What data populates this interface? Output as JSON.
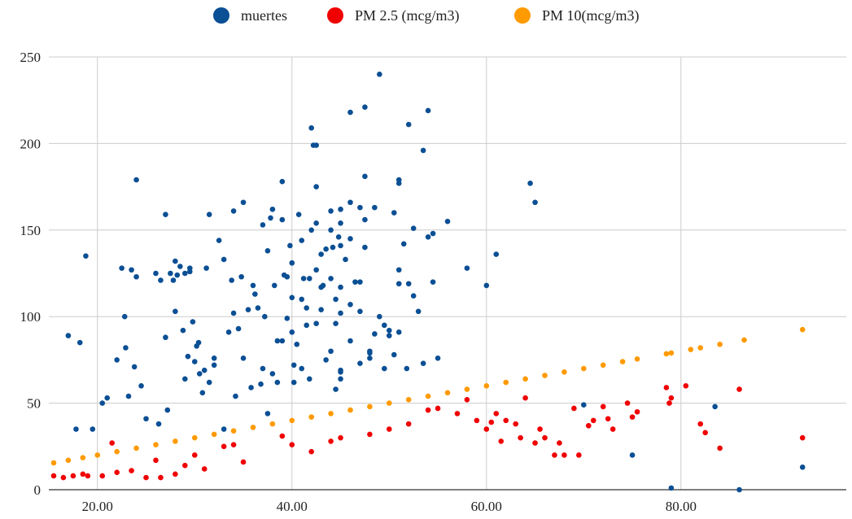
{
  "chart_data": {
    "type": "scatter",
    "title": "",
    "xlabel": "",
    "ylabel": "",
    "xlim": [
      15,
      97
    ],
    "ylim": [
      0,
      250
    ],
    "x_ticks": [
      "20.00",
      "40.00",
      "60.00",
      "80.00"
    ],
    "x_tick_values": [
      20,
      40,
      60,
      80
    ],
    "y_ticks": [
      "0",
      "50",
      "100",
      "150",
      "200",
      "250"
    ],
    "y_tick_values": [
      0,
      50,
      100,
      150,
      200,
      250
    ],
    "grid": true,
    "legend_position": "top",
    "series": [
      {
        "name": "muertes",
        "color": "#0b4f94",
        "points": [
          [
            17.0,
            89
          ],
          [
            17.8,
            35
          ],
          [
            18.2,
            85
          ],
          [
            18.8,
            135
          ],
          [
            19.5,
            35
          ],
          [
            20.5,
            50
          ],
          [
            21.0,
            53
          ],
          [
            22.0,
            75
          ],
          [
            22.5,
            128
          ],
          [
            22.8,
            100
          ],
          [
            22.9,
            82
          ],
          [
            23.2,
            54
          ],
          [
            23.5,
            127
          ],
          [
            23.8,
            71
          ],
          [
            24.0,
            179
          ],
          [
            24.0,
            123
          ],
          [
            24.5,
            60
          ],
          [
            25.0,
            41
          ],
          [
            26.0,
            125
          ],
          [
            26.3,
            38
          ],
          [
            26.5,
            121
          ],
          [
            27.0,
            159
          ],
          [
            27.0,
            88
          ],
          [
            27.2,
            46
          ],
          [
            27.5,
            125
          ],
          [
            27.8,
            121
          ],
          [
            28.0,
            132
          ],
          [
            28.0,
            103
          ],
          [
            28.2,
            124
          ],
          [
            28.5,
            129
          ],
          [
            28.8,
            92
          ],
          [
            29.0,
            64
          ],
          [
            29.0,
            125
          ],
          [
            29.3,
            77
          ],
          [
            29.5,
            126
          ],
          [
            29.5,
            128
          ],
          [
            29.8,
            97
          ],
          [
            30.0,
            74
          ],
          [
            30.2,
            83
          ],
          [
            30.4,
            85
          ],
          [
            30.5,
            67
          ],
          [
            30.8,
            56
          ],
          [
            31.0,
            69
          ],
          [
            31.2,
            128
          ],
          [
            31.5,
            159
          ],
          [
            31.5,
            62
          ],
          [
            32.0,
            72
          ],
          [
            32.0,
            76
          ],
          [
            32.5,
            144
          ],
          [
            33.0,
            133
          ],
          [
            33.0,
            35
          ],
          [
            33.5,
            91
          ],
          [
            33.8,
            121
          ],
          [
            34.0,
            161
          ],
          [
            34.0,
            102
          ],
          [
            34.2,
            54
          ],
          [
            34.5,
            93
          ],
          [
            34.8,
            123
          ],
          [
            35.0,
            166
          ],
          [
            35.0,
            76
          ],
          [
            35.5,
            104
          ],
          [
            35.8,
            59
          ],
          [
            36.0,
            118
          ],
          [
            36.2,
            113
          ],
          [
            36.5,
            105
          ],
          [
            36.8,
            61
          ],
          [
            37.0,
            153
          ],
          [
            37.0,
            70
          ],
          [
            37.2,
            100
          ],
          [
            37.5,
            138
          ],
          [
            37.5,
            44
          ],
          [
            37.8,
            157
          ],
          [
            38.0,
            67
          ],
          [
            38.0,
            162
          ],
          [
            38.2,
            118
          ],
          [
            38.5,
            86
          ],
          [
            38.5,
            62
          ],
          [
            39.0,
            156
          ],
          [
            39.0,
            178
          ],
          [
            39.0,
            86
          ],
          [
            39.2,
            124
          ],
          [
            39.5,
            99
          ],
          [
            39.5,
            123
          ],
          [
            39.8,
            141
          ],
          [
            40.0,
            131
          ],
          [
            40.0,
            111
          ],
          [
            40.0,
            91
          ],
          [
            40.2,
            62
          ],
          [
            40.2,
            72
          ],
          [
            40.5,
            84
          ],
          [
            40.7,
            159
          ],
          [
            41.0,
            144
          ],
          [
            41.0,
            70
          ],
          [
            41.0,
            110
          ],
          [
            41.2,
            122
          ],
          [
            41.5,
            105
          ],
          [
            41.5,
            95
          ],
          [
            41.8,
            64
          ],
          [
            41.8,
            122
          ],
          [
            42.0,
            209
          ],
          [
            42.0,
            150
          ],
          [
            42.2,
            199
          ],
          [
            42.5,
            199
          ],
          [
            42.5,
            175
          ],
          [
            42.5,
            154
          ],
          [
            42.5,
            96
          ],
          [
            42.5,
            127
          ],
          [
            43.0,
            104
          ],
          [
            43.0,
            136
          ],
          [
            43.0,
            117
          ],
          [
            43.2,
            118
          ],
          [
            43.5,
            75
          ],
          [
            43.5,
            139
          ],
          [
            44.0,
            122
          ],
          [
            44.0,
            161
          ],
          [
            44.0,
            150
          ],
          [
            44.0,
            80
          ],
          [
            44.2,
            140
          ],
          [
            44.5,
            96
          ],
          [
            44.5,
            58
          ],
          [
            44.5,
            110
          ],
          [
            44.8,
            146
          ],
          [
            45.0,
            154
          ],
          [
            45.0,
            162
          ],
          [
            45.0,
            141
          ],
          [
            45.0,
            117
          ],
          [
            45.0,
            102
          ],
          [
            45.0,
            69
          ],
          [
            45.0,
            68
          ],
          [
            45.0,
            64
          ],
          [
            45.5,
            133
          ],
          [
            46.0,
            218
          ],
          [
            46.0,
            166
          ],
          [
            46.0,
            145
          ],
          [
            46.0,
            107
          ],
          [
            46.0,
            86
          ],
          [
            46.5,
            120
          ],
          [
            47.0,
            163
          ],
          [
            47.0,
            120
          ],
          [
            47.0,
            103
          ],
          [
            47.0,
            73
          ],
          [
            47.5,
            221
          ],
          [
            47.5,
            181
          ],
          [
            47.5,
            156
          ],
          [
            47.5,
            140
          ],
          [
            48.0,
            80
          ],
          [
            48.0,
            79
          ],
          [
            48.0,
            76
          ],
          [
            48.5,
            163
          ],
          [
            48.5,
            90
          ],
          [
            49.0,
            240
          ],
          [
            49.0,
            100
          ],
          [
            49.5,
            95
          ],
          [
            49.5,
            70
          ],
          [
            50.0,
            92
          ],
          [
            50.0,
            89
          ],
          [
            50.5,
            78
          ],
          [
            50.5,
            160
          ],
          [
            51.0,
            179
          ],
          [
            51.0,
            177
          ],
          [
            51.0,
            127
          ],
          [
            51.0,
            119
          ],
          [
            51.0,
            91
          ],
          [
            51.5,
            142
          ],
          [
            51.8,
            70
          ],
          [
            52.0,
            211
          ],
          [
            52.0,
            119
          ],
          [
            52.5,
            151
          ],
          [
            52.5,
            112
          ],
          [
            53.0,
            103
          ],
          [
            53.5,
            196
          ],
          [
            53.5,
            73
          ],
          [
            54.0,
            219
          ],
          [
            54.0,
            146
          ],
          [
            54.5,
            148
          ],
          [
            54.5,
            120
          ],
          [
            55.0,
            76
          ],
          [
            56.0,
            155
          ],
          [
            58.0,
            128
          ],
          [
            60.0,
            118
          ],
          [
            61.0,
            136
          ],
          [
            64.5,
            177
          ],
          [
            65.0,
            166
          ],
          [
            70.0,
            49
          ],
          [
            75.0,
            20
          ],
          [
            79.0,
            1
          ],
          [
            83.5,
            48
          ],
          [
            86.0,
            0
          ],
          [
            92.5,
            13
          ]
        ]
      },
      {
        "name": "PM 2.5 (mcg/m3)",
        "color": "#f00000",
        "points": [
          [
            15.5,
            8
          ],
          [
            16.5,
            7
          ],
          [
            17.5,
            8
          ],
          [
            18.5,
            9
          ],
          [
            19.0,
            8
          ],
          [
            20.5,
            8
          ],
          [
            21.5,
            27
          ],
          [
            22.0,
            10
          ],
          [
            23.5,
            11
          ],
          [
            25.0,
            7
          ],
          [
            26.0,
            17
          ],
          [
            26.5,
            7
          ],
          [
            28.0,
            9
          ],
          [
            29.0,
            14
          ],
          [
            30.0,
            20
          ],
          [
            31.0,
            12
          ],
          [
            33.0,
            25
          ],
          [
            34.0,
            26
          ],
          [
            35.0,
            16
          ],
          [
            39.0,
            31
          ],
          [
            40.0,
            26
          ],
          [
            42.0,
            22
          ],
          [
            44.0,
            28
          ],
          [
            45.0,
            30
          ],
          [
            48.0,
            32
          ],
          [
            50.0,
            35
          ],
          [
            52.0,
            38
          ],
          [
            54.0,
            46
          ],
          [
            55.0,
            47
          ],
          [
            57.0,
            44
          ],
          [
            58.0,
            52
          ],
          [
            59.0,
            40
          ],
          [
            60.0,
            35
          ],
          [
            60.5,
            39
          ],
          [
            61.0,
            44
          ],
          [
            61.5,
            28
          ],
          [
            62.0,
            40
          ],
          [
            63.0,
            38
          ],
          [
            63.5,
            30
          ],
          [
            64.0,
            53
          ],
          [
            65.0,
            27
          ],
          [
            65.5,
            35
          ],
          [
            66.0,
            30
          ],
          [
            67.0,
            20
          ],
          [
            67.5,
            27
          ],
          [
            68.0,
            20
          ],
          [
            69.0,
            47
          ],
          [
            69.5,
            20
          ],
          [
            70.5,
            37
          ],
          [
            71.0,
            40
          ],
          [
            72.0,
            48
          ],
          [
            72.5,
            41
          ],
          [
            73.0,
            35
          ],
          [
            74.5,
            50
          ],
          [
            75.0,
            42
          ],
          [
            75.5,
            45
          ],
          [
            78.5,
            59
          ],
          [
            78.8,
            50
          ],
          [
            79.0,
            53
          ],
          [
            80.5,
            60
          ],
          [
            82.0,
            38
          ],
          [
            82.5,
            33
          ],
          [
            84.0,
            24
          ],
          [
            86.0,
            58
          ],
          [
            92.5,
            30
          ]
        ]
      },
      {
        "name": "PM 10(mcg/m3)",
        "color": "#ff9a00",
        "points": [
          [
            15.5,
            15.5
          ],
          [
            17.0,
            17.0
          ],
          [
            18.5,
            18.5
          ],
          [
            20.0,
            20.0
          ],
          [
            22.0,
            22.0
          ],
          [
            24.0,
            24.0
          ],
          [
            26.0,
            26.0
          ],
          [
            28.0,
            28.0
          ],
          [
            30.0,
            30.0
          ],
          [
            32.0,
            32.0
          ],
          [
            34.0,
            34.0
          ],
          [
            36.0,
            36.0
          ],
          [
            38.0,
            38.0
          ],
          [
            40.0,
            40.0
          ],
          [
            42.0,
            42.0
          ],
          [
            44.0,
            44.0
          ],
          [
            46.0,
            46.0
          ],
          [
            48.0,
            48.0
          ],
          [
            50.0,
            50.0
          ],
          [
            52.0,
            52.0
          ],
          [
            54.0,
            54.0
          ],
          [
            56.0,
            56.0
          ],
          [
            58.0,
            58.0
          ],
          [
            60.0,
            60.0
          ],
          [
            62.0,
            62.0
          ],
          [
            64.0,
            64.0
          ],
          [
            66.0,
            66.0
          ],
          [
            68.0,
            68.0
          ],
          [
            70.0,
            70.0
          ],
          [
            72.0,
            72.0
          ],
          [
            74.0,
            74.0
          ],
          [
            75.5,
            75.5
          ],
          [
            78.5,
            78.5
          ],
          [
            79.0,
            79.0
          ],
          [
            81.0,
            81.0
          ],
          [
            82.0,
            82.0
          ],
          [
            84.0,
            84.0
          ],
          [
            86.5,
            86.5
          ],
          [
            92.5,
            92.5
          ]
        ]
      }
    ]
  }
}
